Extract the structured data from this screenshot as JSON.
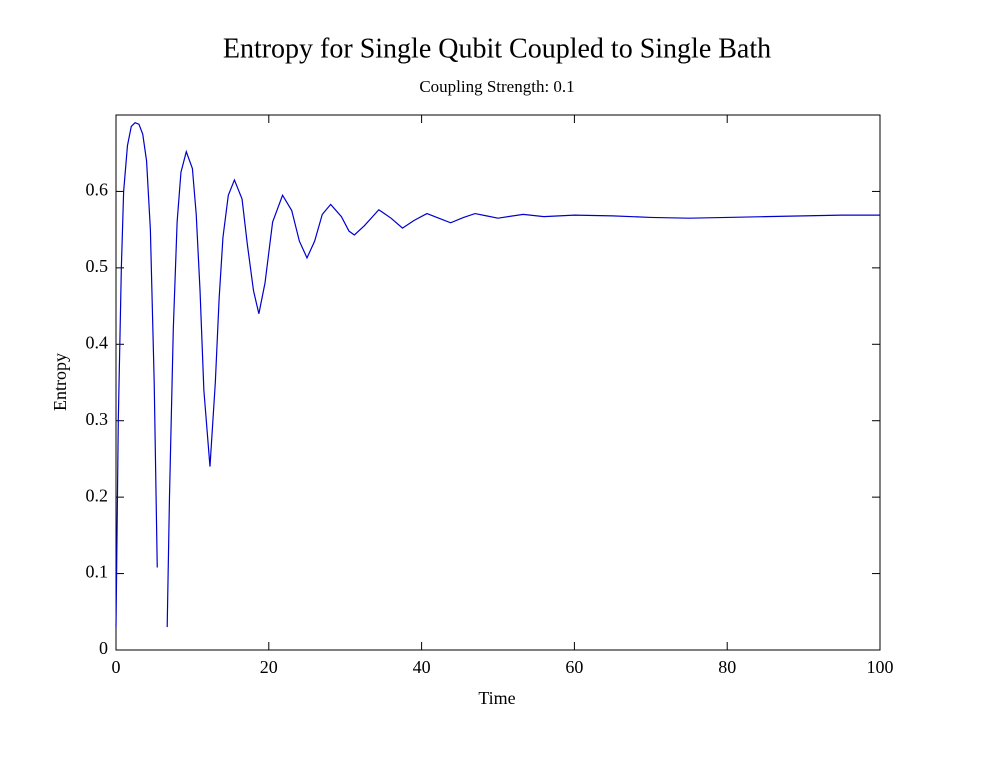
{
  "chart_data": {
    "type": "line",
    "title": "Entropy for Single Qubit Coupled to Single Bath",
    "subtitle": "Coupling Strength: 0.1",
    "x_label": "Time",
    "y_label": "Entropy",
    "xlim": [
      0,
      100
    ],
    "ylim": [
      0,
      0.7
    ],
    "xticks": [
      0,
      20,
      40,
      60,
      80,
      100
    ],
    "yticks": [
      0,
      0.1,
      0.2,
      0.3,
      0.4,
      0.5,
      0.6
    ],
    "series": [
      {
        "color": "#0000cc",
        "x": [
          0,
          0.3,
          0.7,
          1,
          1.5,
          2,
          2.5,
          3,
          3.5,
          4,
          4.5,
          5,
          5.4,
          6,
          6.7,
          7,
          7.5,
          8,
          8.5,
          9.2,
          10,
          10.5,
          11,
          11.5,
          12.3,
          13,
          13.5,
          14,
          14.7,
          15.5,
          16.5,
          17.2,
          18,
          18.7,
          19.5,
          20.5,
          21.8,
          23,
          24,
          25,
          26,
          27,
          28.1,
          29.5,
          30.5,
          31.2,
          32.5,
          34.4,
          36,
          37.5,
          39,
          40.7,
          42,
          43.8,
          45.5,
          47,
          48.5,
          50,
          53.3,
          56,
          60,
          65,
          70,
          75,
          80,
          85,
          90,
          95,
          100
        ],
        "values": [
          0.03,
          0.3,
          0.5,
          0.6,
          0.66,
          0.685,
          0.69,
          0.688,
          0.675,
          0.64,
          0.55,
          0.35,
          0.108,
          null,
          0.03,
          0.2,
          0.42,
          0.56,
          0.625,
          0.652,
          0.63,
          0.57,
          0.47,
          0.34,
          0.24,
          0.35,
          0.46,
          0.54,
          0.595,
          0.615,
          0.59,
          0.53,
          0.47,
          0.44,
          0.48,
          0.56,
          0.595,
          0.575,
          0.535,
          0.513,
          0.535,
          0.57,
          0.583,
          0.567,
          0.548,
          0.543,
          0.555,
          0.576,
          0.565,
          0.552,
          0.562,
          0.571,
          0.566,
          0.559,
          0.566,
          0.571,
          0.568,
          0.565,
          0.57,
          0.567,
          0.569,
          0.568,
          0.566,
          0.565,
          0.566,
          0.567,
          0.568,
          0.569,
          0.569
        ]
      }
    ]
  }
}
